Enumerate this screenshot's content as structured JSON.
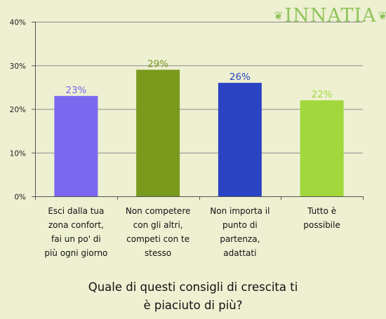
{
  "brand": {
    "logo_text": "INNATIA"
  },
  "chart_data": {
    "type": "bar",
    "categories": [
      "Esci dalla tua zona confort, fai un po' di più ogni giorno",
      "Non competere con gli altri, competi con te stesso",
      "Non importa il punto di partenza, adattati",
      "Tutto è possibile"
    ],
    "category_lines": [
      [
        "Esci dalla tua",
        "zona confort,",
        "fai un po' di",
        "più ogni giorno"
      ],
      [
        "Non competere",
        "con gli altri,",
        "competi con te",
        "stesso"
      ],
      [
        "Non importa il",
        "punto di",
        "partenza,",
        "adattati"
      ],
      [
        "Tutto è",
        "possibile"
      ]
    ],
    "values": [
      23,
      29,
      26,
      22
    ],
    "value_labels": [
      "23%",
      "29%",
      "26%",
      "22%"
    ],
    "colors": [
      "#7b68ee",
      "#7a9a1e",
      "#2a44c4",
      "#a2d83c"
    ],
    "yticks": [
      0,
      10,
      20,
      30,
      40
    ],
    "ytick_labels": [
      "0%",
      "10%",
      "20%",
      "30%",
      "40%"
    ],
    "ylim": [
      0,
      40
    ],
    "grid": true,
    "title": "Quale di questi consigli di crescita ti è piaciuto di più?",
    "title_lines": [
      "Quale di questi consigli di crescita ti",
      "è piaciuto di più?"
    ]
  }
}
